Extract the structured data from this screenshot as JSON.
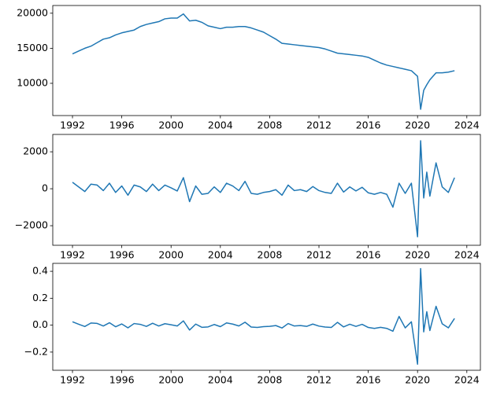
{
  "chart_data": [
    {
      "type": "line",
      "color": "#1f77b4",
      "x": [
        1992,
        1992.5,
        1993,
        1993.5,
        1994,
        1994.5,
        1995,
        1995.5,
        1996,
        1996.5,
        1997,
        1997.5,
        1998,
        1998.5,
        1999,
        1999.5,
        2000,
        2000.5,
        2001,
        2001.5,
        2002,
        2002.5,
        2003,
        2003.5,
        2004,
        2004.5,
        2005,
        2005.5,
        2006,
        2006.5,
        2007,
        2007.5,
        2008,
        2008.5,
        2009,
        2009.5,
        2010,
        2010.5,
        2011,
        2011.5,
        2012,
        2012.5,
        2013,
        2013.5,
        2014,
        2014.5,
        2015,
        2015.5,
        2016,
        2016.5,
        2017,
        2017.5,
        2018,
        2018.5,
        2019,
        2019.5,
        2020,
        2020.25,
        2020.5,
        2020.75,
        2021,
        2021.5,
        2022,
        2022.5,
        2023
      ],
      "values": [
        14200,
        14600,
        15000,
        15300,
        15800,
        16300,
        16500,
        16900,
        17200,
        17400,
        17600,
        18100,
        18400,
        18600,
        18800,
        19200,
        19300,
        19300,
        19900,
        18900,
        19000,
        18700,
        18200,
        18000,
        17800,
        18000,
        18000,
        18100,
        18100,
        17900,
        17600,
        17300,
        16800,
        16300,
        15700,
        15600,
        15500,
        15400,
        15300,
        15200,
        15100,
        14900,
        14600,
        14300,
        14200,
        14100,
        14000,
        13900,
        13700,
        13300,
        12900,
        12600,
        12400,
        12200,
        12000,
        11800,
        11000,
        6300,
        9000,
        9800,
        10500,
        11500,
        11500,
        11600,
        11800
      ],
      "xlim": [
        1990.4,
        2025.1
      ],
      "ylim": [
        5400,
        21100
      ],
      "xticks": [
        1992,
        1996,
        2000,
        2004,
        2008,
        2012,
        2016,
        2020,
        2024
      ],
      "yticks": [
        10000,
        15000,
        20000
      ]
    },
    {
      "type": "line",
      "color": "#1f77b4",
      "x": [
        1992,
        1992.5,
        1993,
        1993.5,
        1994,
        1994.5,
        1995,
        1995.5,
        1996,
        1996.5,
        1997,
        1997.5,
        1998,
        1998.5,
        1999,
        1999.5,
        2000,
        2000.5,
        2001,
        2001.5,
        2002,
        2002.5,
        2003,
        2003.5,
        2004,
        2004.5,
        2005,
        2005.5,
        2006,
        2006.5,
        2007,
        2007.5,
        2008,
        2008.5,
        2009,
        2009.5,
        2010,
        2010.5,
        2011,
        2011.5,
        2012,
        2012.5,
        2013,
        2013.5,
        2014,
        2014.5,
        2015,
        2015.5,
        2016,
        2016.5,
        2017,
        2017.5,
        2018,
        2018.5,
        2019,
        2019.5,
        2020,
        2020.25,
        2020.5,
        2020.75,
        2021,
        2021.5,
        2022,
        2022.5,
        2023
      ],
      "values": [
        350,
        100,
        -150,
        250,
        200,
        -100,
        300,
        -200,
        150,
        -350,
        200,
        100,
        -150,
        250,
        -100,
        200,
        50,
        -120,
        600,
        -700,
        150,
        -300,
        -250,
        100,
        -200,
        300,
        150,
        -100,
        400,
        -250,
        -300,
        -200,
        -150,
        -50,
        -350,
        200,
        -100,
        -50,
        -150,
        120,
        -100,
        -200,
        -250,
        300,
        -180,
        100,
        -120,
        80,
        -220,
        -300,
        -200,
        -300,
        -1000,
        300,
        -250,
        300,
        -2600,
        2600,
        -500,
        900,
        -400,
        1400,
        100,
        -200,
        600
      ],
      "xlim": [
        1990.4,
        2025.1
      ],
      "ylim": [
        -3060,
        2940
      ],
      "xticks": [
        1992,
        1996,
        2000,
        2004,
        2008,
        2012,
        2016,
        2020,
        2024
      ],
      "yticks": [
        {
          "value": -2000,
          "label": "−2000"
        },
        0,
        2000
      ]
    },
    {
      "type": "line",
      "color": "#1f77b4",
      "x": [
        1992,
        1992.5,
        1993,
        1993.5,
        1994,
        1994.5,
        1995,
        1995.5,
        1996,
        1996.5,
        1997,
        1997.5,
        1998,
        1998.5,
        1999,
        1999.5,
        2000,
        2000.5,
        2001,
        2001.5,
        2002,
        2002.5,
        2003,
        2003.5,
        2004,
        2004.5,
        2005,
        2005.5,
        2006,
        2006.5,
        2007,
        2007.5,
        2008,
        2008.5,
        2009,
        2009.5,
        2010,
        2010.5,
        2011,
        2011.5,
        2012,
        2012.5,
        2013,
        2013.5,
        2014,
        2014.5,
        2015,
        2015.5,
        2016,
        2016.5,
        2017,
        2017.5,
        2018,
        2018.5,
        2019,
        2019.5,
        2020,
        2020.25,
        2020.5,
        2020.75,
        2021,
        2021.5,
        2022,
        2022.5,
        2023
      ],
      "values": [
        0.025,
        0.007,
        -0.01,
        0.016,
        0.013,
        -0.006,
        0.018,
        -0.012,
        0.009,
        -0.02,
        0.012,
        0.006,
        -0.009,
        0.014,
        -0.006,
        0.011,
        0.003,
        -0.006,
        0.032,
        -0.036,
        0.008,
        -0.016,
        -0.013,
        0.005,
        -0.011,
        0.017,
        0.008,
        -0.006,
        0.022,
        -0.014,
        -0.017,
        -0.011,
        -0.009,
        -0.003,
        -0.021,
        0.012,
        -0.006,
        -0.003,
        -0.009,
        0.008,
        -0.007,
        -0.014,
        -0.017,
        0.021,
        -0.013,
        0.007,
        -0.009,
        0.006,
        -0.017,
        -0.024,
        -0.016,
        -0.024,
        -0.045,
        0.065,
        -0.02,
        0.025,
        -0.29,
        0.42,
        -0.05,
        0.1,
        -0.04,
        0.14,
        0.01,
        -0.02,
        0.05
      ],
      "xlim": [
        1990.4,
        2025.1
      ],
      "ylim": [
        -0.335,
        0.459
      ],
      "xticks": [
        1992,
        1996,
        2000,
        2004,
        2008,
        2012,
        2016,
        2020,
        2024
      ],
      "yticks": [
        {
          "value": -0.2,
          "label": "−0.2"
        },
        {
          "value": 0,
          "label": "0.0"
        },
        0.2,
        0.4
      ]
    }
  ]
}
